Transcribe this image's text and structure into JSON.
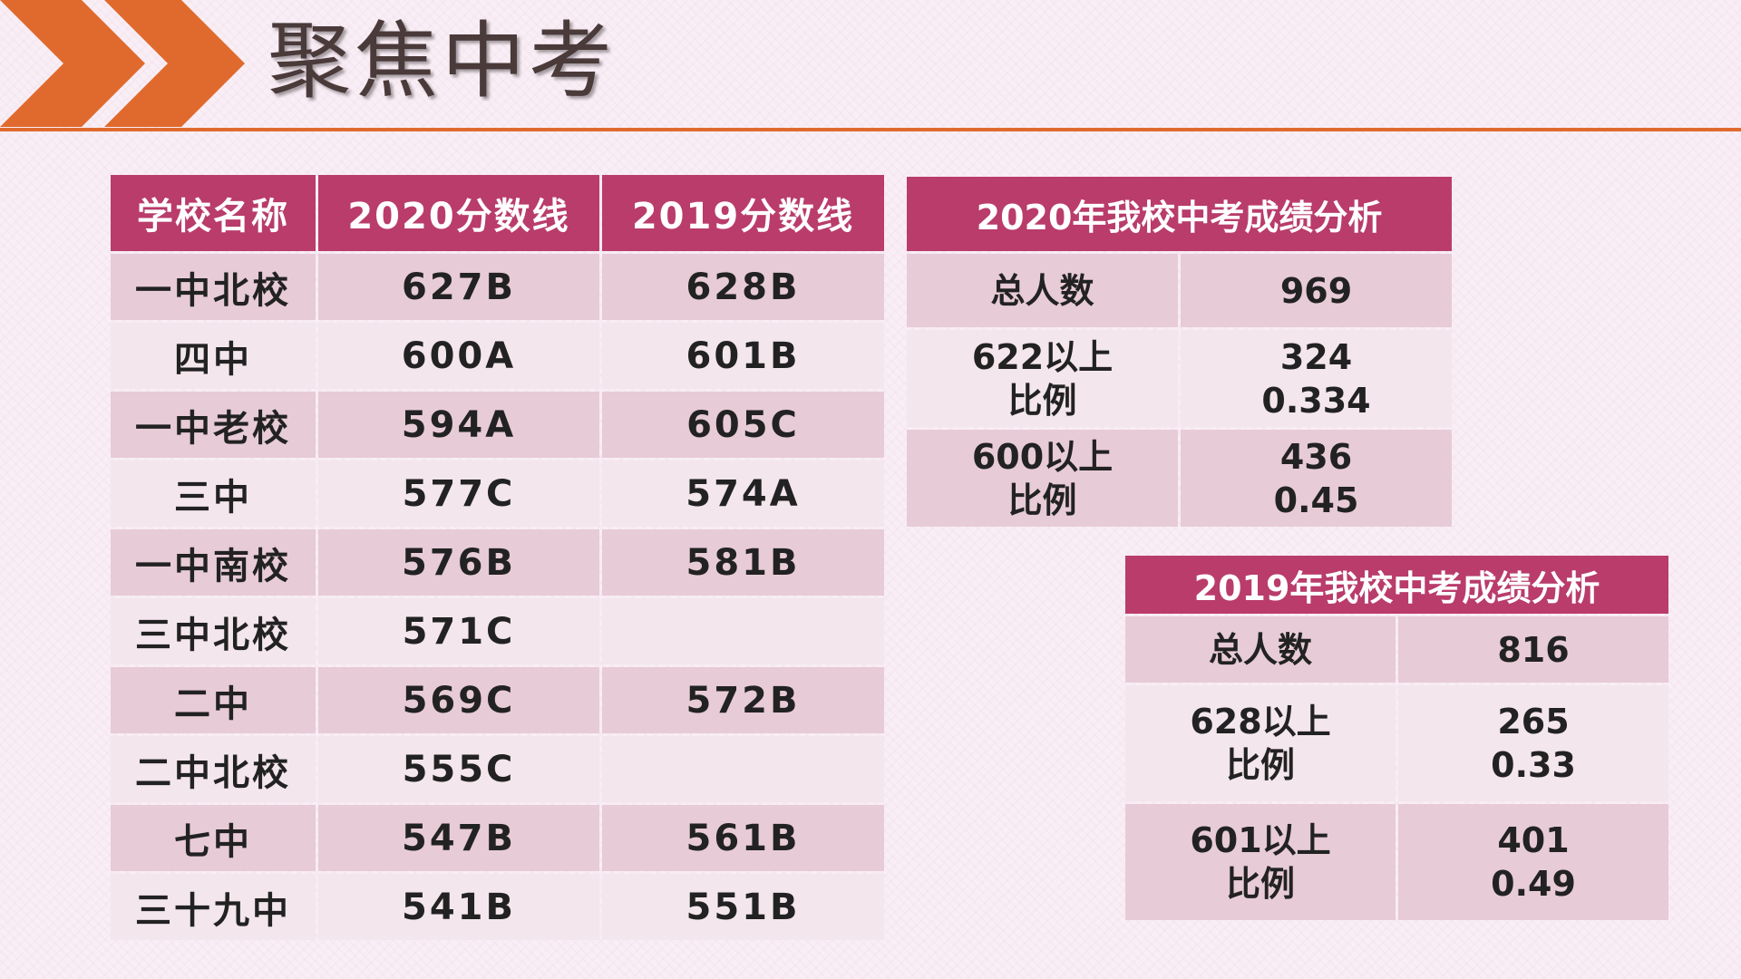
{
  "header": {
    "title": "聚焦中考",
    "icon": "double-chevron-right-icon",
    "accent_color": "#e06a2e"
  },
  "colors": {
    "header_bg": "#b93c6b",
    "row_dark": "#e7cbd6",
    "row_light": "#f3e6ec"
  },
  "score_table": {
    "headers": [
      "学校名称",
      "2020分数线",
      "2019分数线"
    ],
    "rows": [
      {
        "school": "一中北校",
        "y2020": "627B",
        "y2019": "628B"
      },
      {
        "school": "四中",
        "y2020": "600A",
        "y2019": "601B"
      },
      {
        "school": "一中老校",
        "y2020": "594A",
        "y2019": "605C"
      },
      {
        "school": "三中",
        "y2020": "577C",
        "y2019": "574A"
      },
      {
        "school": "一中南校",
        "y2020": "576B",
        "y2019": "581B"
      },
      {
        "school": "三中北校",
        "y2020": "571C",
        "y2019": ""
      },
      {
        "school": "二中",
        "y2020": "569C",
        "y2019": "572B"
      },
      {
        "school": "二中北校",
        "y2020": "555C",
        "y2019": ""
      },
      {
        "school": "七中",
        "y2020": "547B",
        "y2019": "561B"
      },
      {
        "school": "三十九中",
        "y2020": "541B",
        "y2019": "551B"
      }
    ]
  },
  "analysis_2020": {
    "title": "2020年我校中考成绩分析",
    "rows": [
      {
        "label": [
          "总人数"
        ],
        "value": [
          "969"
        ]
      },
      {
        "label": [
          "622以上",
          "比例"
        ],
        "value": [
          "324",
          "0.334"
        ]
      },
      {
        "label": [
          "600以上",
          "比例"
        ],
        "value": [
          "436",
          "0.45"
        ]
      }
    ]
  },
  "analysis_2019": {
    "title": "2019年我校中考成绩分析",
    "rows": [
      {
        "label": [
          "总人数"
        ],
        "value": [
          "816"
        ]
      },
      {
        "label": [
          "628以上",
          "比例"
        ],
        "value": [
          "265",
          "0.33"
        ]
      },
      {
        "label": [
          "601以上",
          "比例"
        ],
        "value": [
          "401",
          "0.49"
        ]
      }
    ]
  }
}
